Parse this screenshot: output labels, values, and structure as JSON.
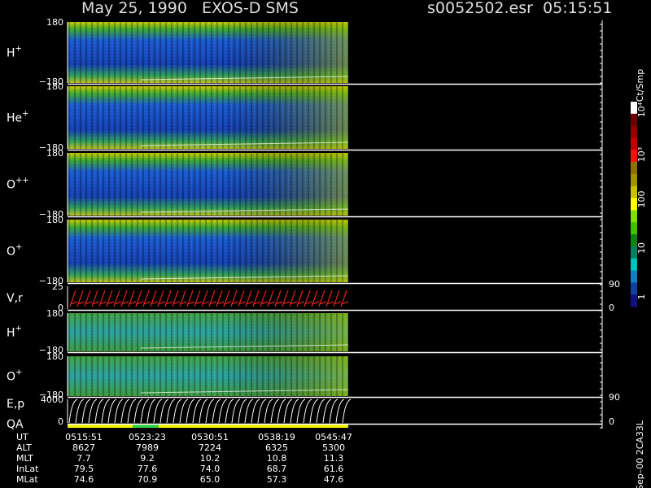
{
  "header": {
    "title": "May 25, 1990   EXOS-D SMS",
    "file": "s0052502.esr  05:15:51"
  },
  "panels": [
    {
      "label": "H",
      "sup": "+",
      "ticks": [
        "180",
        "−180"
      ]
    },
    {
      "label": "He",
      "sup": "+",
      "ticks": [
        "180",
        "−180"
      ]
    },
    {
      "label": "O",
      "sup": "++",
      "ticks": [
        "180",
        "−180"
      ]
    },
    {
      "label": "O",
      "sup": "+",
      "ticks": [
        "180",
        "−180"
      ]
    },
    {
      "label": "V,r",
      "ticks": [
        "25",
        "0"
      ],
      "right_ticks": [
        "90",
        "0"
      ]
    },
    {
      "label": "H",
      "sup": "+",
      "ticks": [
        "180",
        "−180"
      ]
    },
    {
      "label": "O",
      "sup": "+",
      "ticks": [
        "180",
        "−180"
      ]
    },
    {
      "label": "E,p",
      "label2": "QA",
      "ticks": [
        "4000",
        "0"
      ],
      "right_ticks": [
        "90",
        "0"
      ]
    }
  ],
  "colorbar": {
    "unit": "Ct/Smp",
    "labels": [
      "10⁴",
      "10³",
      "100",
      "10",
      "1"
    ]
  },
  "table": {
    "rows": [
      [
        "UT",
        "0515:51",
        "0523:23",
        "0530:51",
        "0538:19",
        "0545:47"
      ],
      [
        "ALT",
        "8627",
        "7989",
        "7224",
        "6325",
        "5300"
      ],
      [
        "MLT",
        "7.7",
        "9.2",
        "10.2",
        "10.8",
        "11.3"
      ],
      [
        "InLat",
        "79.5",
        "77.6",
        "74.0",
        "68.7",
        "61.6"
      ],
      [
        "MLat",
        "74.6",
        "70.9",
        "65.0",
        "57.3",
        "47.6"
      ]
    ]
  },
  "footer": "Sep–00 2CA33L"
}
